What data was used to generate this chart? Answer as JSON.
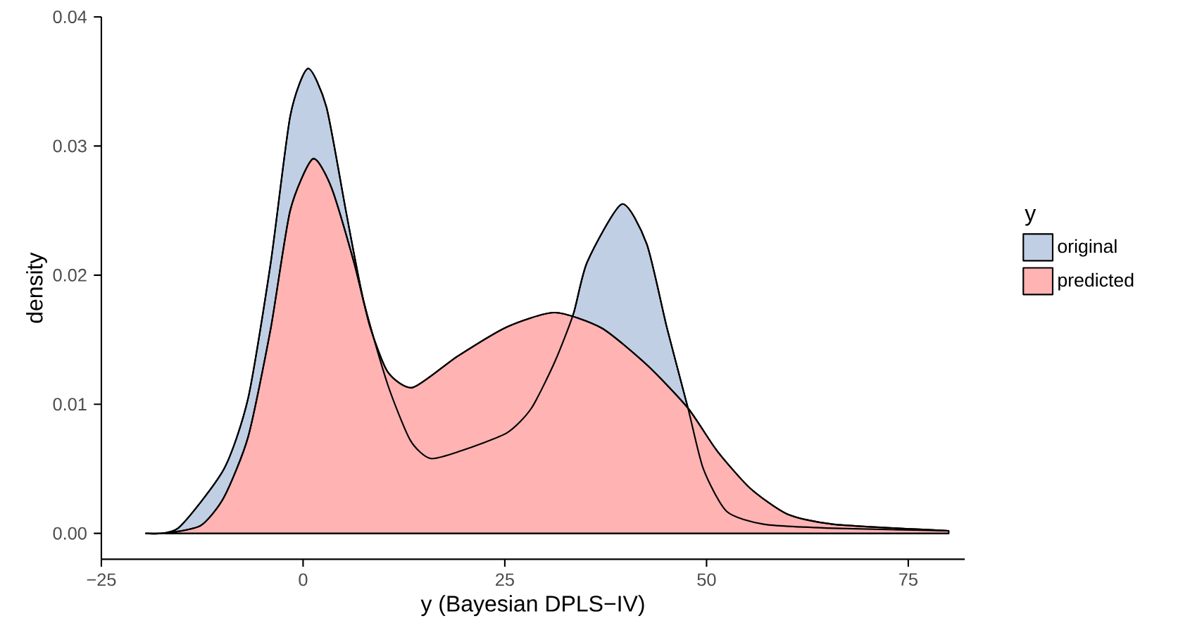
{
  "chart_data": {
    "type": "area",
    "xlabel": "y (Bayesian DPLS−IV)",
    "ylabel": "density",
    "legend_title": "y",
    "legend": "right",
    "grid": false,
    "xlim": [
      -25,
      82
    ],
    "ylim": [
      -0.002,
      0.04
    ],
    "xticks": [
      {
        "value": -25,
        "label": "−25"
      },
      0,
      25,
      50,
      75
    ],
    "yticks": [
      {
        "value": 0,
        "label": "0.00"
      },
      {
        "value": 0.01,
        "label": "0.01"
      },
      {
        "value": 0.02,
        "label": "0.02"
      },
      {
        "value": 0.03,
        "label": "0.03"
      },
      {
        "value": 0.04,
        "label": "0.04"
      }
    ],
    "series": [
      {
        "name": "original",
        "color": "#c0cfe4",
        "x": [
          -19.5,
          -15.5,
          -9.8,
          -6.8,
          -4,
          -1.6,
          0.6,
          2.9,
          5.3,
          7.5,
          10.5,
          13.3,
          15.8,
          19.6,
          25.3,
          28.3,
          31.2,
          33.5,
          35.2,
          39.5,
          42.6,
          45.1,
          47.7,
          49.6,
          52.5,
          57.2,
          65.8,
          80
        ],
        "values": [
          0,
          0.0004,
          0.005,
          0.0105,
          0.021,
          0.0323,
          0.036,
          0.033,
          0.025,
          0.018,
          0.0115,
          0.0072,
          0.0058,
          0.0064,
          0.0078,
          0.0097,
          0.0133,
          0.017,
          0.021,
          0.0255,
          0.0224,
          0.0159,
          0.0097,
          0.005,
          0.0017,
          0.0007,
          0.0004,
          0.0002
        ]
      },
      {
        "name": "predicted",
        "color": "#ffb3b3",
        "x": [
          -17,
          -12.7,
          -9.8,
          -6.8,
          -4,
          -1.6,
          1.2,
          3.5,
          6.3,
          8.3,
          10.5,
          13.6,
          19.1,
          25.3,
          31.2,
          37,
          42.7,
          47.7,
          51.3,
          55.4,
          60,
          65.8,
          80
        ],
        "values": [
          0,
          0.0006,
          0.0028,
          0.0075,
          0.0159,
          0.025,
          0.029,
          0.0268,
          0.021,
          0.016,
          0.0125,
          0.0113,
          0.0137,
          0.016,
          0.0171,
          0.0159,
          0.013,
          0.0097,
          0.0064,
          0.0035,
          0.0015,
          0.0007,
          0.0002
        ]
      }
    ]
  }
}
